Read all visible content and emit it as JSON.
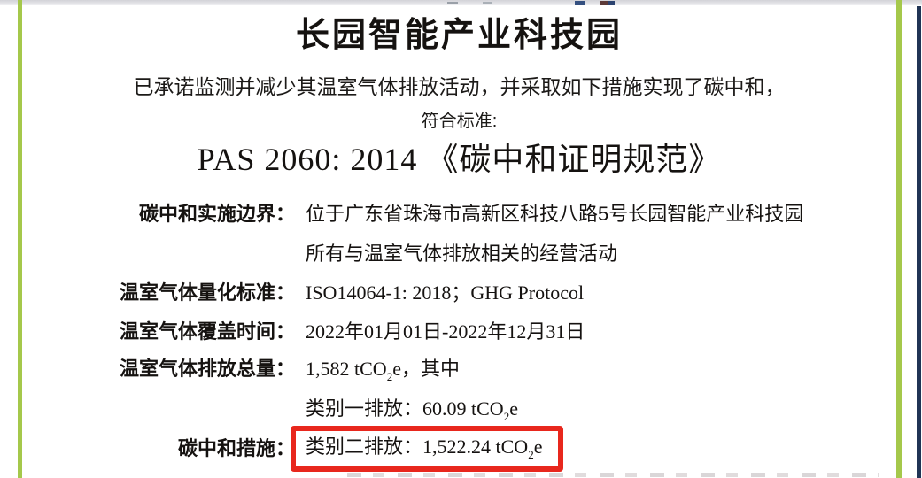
{
  "document": {
    "title": "长园智能产业科技园",
    "commitment_line": "已承诺监测并减少其温室气体排放活动，并采取如下措施实现了碳中和，",
    "standard_intro": "符合标准:",
    "standard_name": "PAS 2060: 2014 《碳中和证明规范》",
    "fields": {
      "boundary": {
        "label": "碳中和实施边界：",
        "value_line1": "位于广东省珠海市高新区科技八路5号长园智能产业科技园",
        "value_line2": "所有与温室气体排放相关的经营活动"
      },
      "quantification_standard": {
        "label": "温室气体量化标准：",
        "value": "ISO14064-1: 2018；GHG Protocol"
      },
      "coverage_period": {
        "label": "温室气体覆盖时间：",
        "value": "2022年01月01日-2022年12月31日"
      },
      "total_emissions": {
        "label": "温室气体排放总量：",
        "value_main": "1,582 tCO",
        "value_sub": "2",
        "value_tail": "e，其中"
      },
      "category1_emissions": {
        "value_main": "类别一排放：60.09 tCO",
        "value_sub": "2",
        "value_tail": "e"
      },
      "neutralization_measures": {
        "label": "碳中和措施：",
        "value_main": "类别二排放：1,522.24 tCO",
        "value_sub": "2",
        "value_tail": "e"
      }
    }
  },
  "colors": {
    "accent_green_border": "#a5c84b",
    "page_edge_navy": "#203455",
    "highlight_box_red": "#e8271d"
  }
}
